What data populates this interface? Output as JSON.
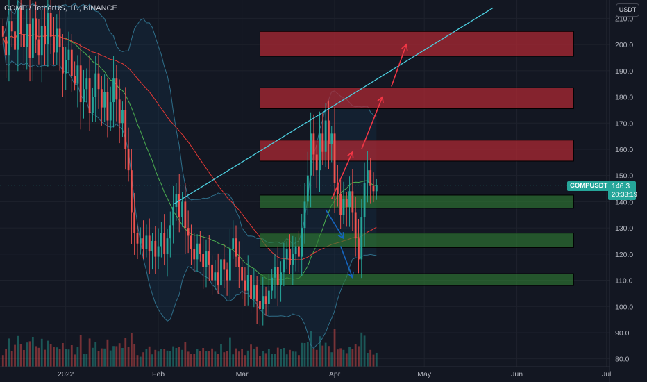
{
  "header": {
    "title": "COMP / TetherUS, 1D, BINANCE"
  },
  "price_scale": {
    "unit": "USDT"
  },
  "last_price": {
    "symbol": "COMPUSDT",
    "value": "146.3",
    "countdown": "20:33:19"
  },
  "colors": {
    "background": "#131722",
    "up": "#26a69a",
    "down": "#ef5350",
    "resistance_zone": "#b22833",
    "support_zone": "#2e7d32",
    "trendline": "#4dd0e1",
    "arrow_up": "#f23645",
    "arrow_down": "#1565c0"
  },
  "chart_data": {
    "type": "candlestick",
    "title": "COMP / TetherUS, 1D, BINANCE",
    "y_axis": {
      "ylim": [
        77,
        217
      ],
      "ticks": [
        "210.0",
        "200.0",
        "190.0",
        "180.0",
        "170.0",
        "160.0",
        "150.0",
        "140.0",
        "130.0",
        "120.0",
        "110.0",
        "100.0",
        "90.0",
        "80.0"
      ],
      "tick_values": [
        210,
        200,
        190,
        180,
        170,
        160,
        150,
        140,
        130,
        120,
        110,
        100,
        90,
        80
      ],
      "position": "right"
    },
    "x_axis": {
      "range_days": [
        -22,
        182
      ],
      "labels": [
        {
          "label": "2022",
          "day": 0
        },
        {
          "label": "Feb",
          "day": 31
        },
        {
          "label": "Mar",
          "day": 59
        },
        {
          "label": "Apr",
          "day": 90
        },
        {
          "label": "May",
          "day": 120
        },
        {
          "label": "Jun",
          "day": 151
        },
        {
          "label": "Jul",
          "day": 181
        }
      ]
    },
    "candles_close": [
      203,
      196,
      209,
      205,
      198,
      214,
      204,
      199,
      208,
      195,
      210,
      202,
      196,
      207,
      200,
      212,
      203,
      197,
      206,
      199,
      189,
      194,
      198,
      188,
      185,
      192,
      178,
      183,
      187,
      174,
      180,
      189,
      183,
      176,
      182,
      171,
      178,
      187,
      179,
      170,
      175,
      160,
      152,
      136,
      128,
      124,
      126,
      122,
      127,
      121,
      125,
      119,
      123,
      128,
      120,
      126,
      131,
      138,
      143,
      134,
      140,
      130,
      127,
      122,
      118,
      124,
      120,
      115,
      121,
      116,
      110,
      113,
      108,
      118,
      114,
      110,
      122,
      126,
      119,
      115,
      110,
      106,
      112,
      103,
      108,
      102,
      99,
      104,
      101,
      106,
      111,
      115,
      108,
      113,
      118,
      122,
      116,
      120,
      123,
      119,
      130,
      140,
      150,
      166,
      158,
      152,
      166,
      159,
      171,
      162,
      166,
      147,
      143,
      135,
      141,
      138,
      144,
      136,
      126,
      118,
      134,
      147,
      152,
      146,
      144,
      146.3
    ],
    "zones": [
      {
        "kind": "resistance",
        "low": 195.5,
        "high": 205
      },
      {
        "kind": "resistance",
        "low": 175.5,
        "high": 183.5
      },
      {
        "kind": "resistance",
        "low": 155.5,
        "high": 163.5
      },
      {
        "kind": "support",
        "low": 137.5,
        "high": 142.5
      },
      {
        "kind": "support",
        "low": 122.5,
        "high": 128
      },
      {
        "kind": "support",
        "low": 108,
        "high": 112.5
      }
    ],
    "trendline": {
      "from": {
        "day": 36,
        "value": 139
      },
      "to": {
        "day": 143,
        "value": 214
      }
    },
    "projection_arrows": [
      {
        "dir": "up",
        "from": {
          "day": 89,
          "value": 141
        },
        "to": {
          "day": 96,
          "value": 159
        }
      },
      {
        "dir": "up",
        "from": {
          "day": 99,
          "value": 160
        },
        "to": {
          "day": 106,
          "value": 180
        }
      },
      {
        "dir": "up",
        "from": {
          "day": 109,
          "value": 184
        },
        "to": {
          "day": 114,
          "value": 200
        }
      },
      {
        "dir": "down",
        "from": {
          "day": 87,
          "value": 137
        },
        "to": {
          "day": 93,
          "value": 126
        }
      },
      {
        "dir": "down",
        "from": {
          "day": 92,
          "value": 123
        },
        "to": {
          "day": 96,
          "value": 111
        }
      }
    ]
  }
}
